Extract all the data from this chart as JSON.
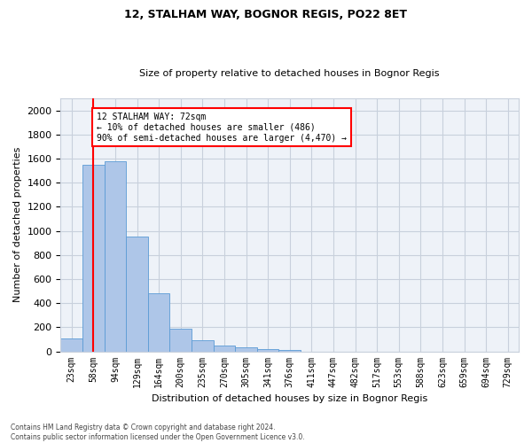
{
  "title_line1": "12, STALHAM WAY, BOGNOR REGIS, PO22 8ET",
  "title_line2": "Size of property relative to detached houses in Bognor Regis",
  "xlabel": "Distribution of detached houses by size in Bognor Regis",
  "ylabel": "Number of detached properties",
  "footnote": "Contains HM Land Registry data © Crown copyright and database right 2024.\nContains public sector information licensed under the Open Government Licence v3.0.",
  "categories": [
    "23sqm",
    "58sqm",
    "94sqm",
    "129sqm",
    "164sqm",
    "200sqm",
    "235sqm",
    "270sqm",
    "305sqm",
    "341sqm",
    "376sqm",
    "411sqm",
    "447sqm",
    "482sqm",
    "517sqm",
    "553sqm",
    "588sqm",
    "623sqm",
    "659sqm",
    "694sqm",
    "729sqm"
  ],
  "values": [
    110,
    1545,
    1575,
    950,
    485,
    190,
    95,
    45,
    30,
    20,
    15,
    0,
    0,
    0,
    0,
    0,
    0,
    0,
    0,
    0,
    0
  ],
  "bar_color": "#aec6e8",
  "bar_edge_color": "#5b9bd5",
  "vline_x": 1.0,
  "vline_color": "red",
  "annotation_text": "12 STALHAM WAY: 72sqm\n← 10% of detached houses are smaller (486)\n90% of semi-detached houses are larger (4,470) →",
  "annotation_box_color": "white",
  "annotation_box_edge": "red",
  "ylim": [
    0,
    2100
  ],
  "yticks": [
    0,
    200,
    400,
    600,
    800,
    1000,
    1200,
    1400,
    1600,
    1800,
    2000
  ],
  "bg_color": "#eef2f8",
  "plot_bg": "white",
  "grid_color": "#c8d0dc"
}
